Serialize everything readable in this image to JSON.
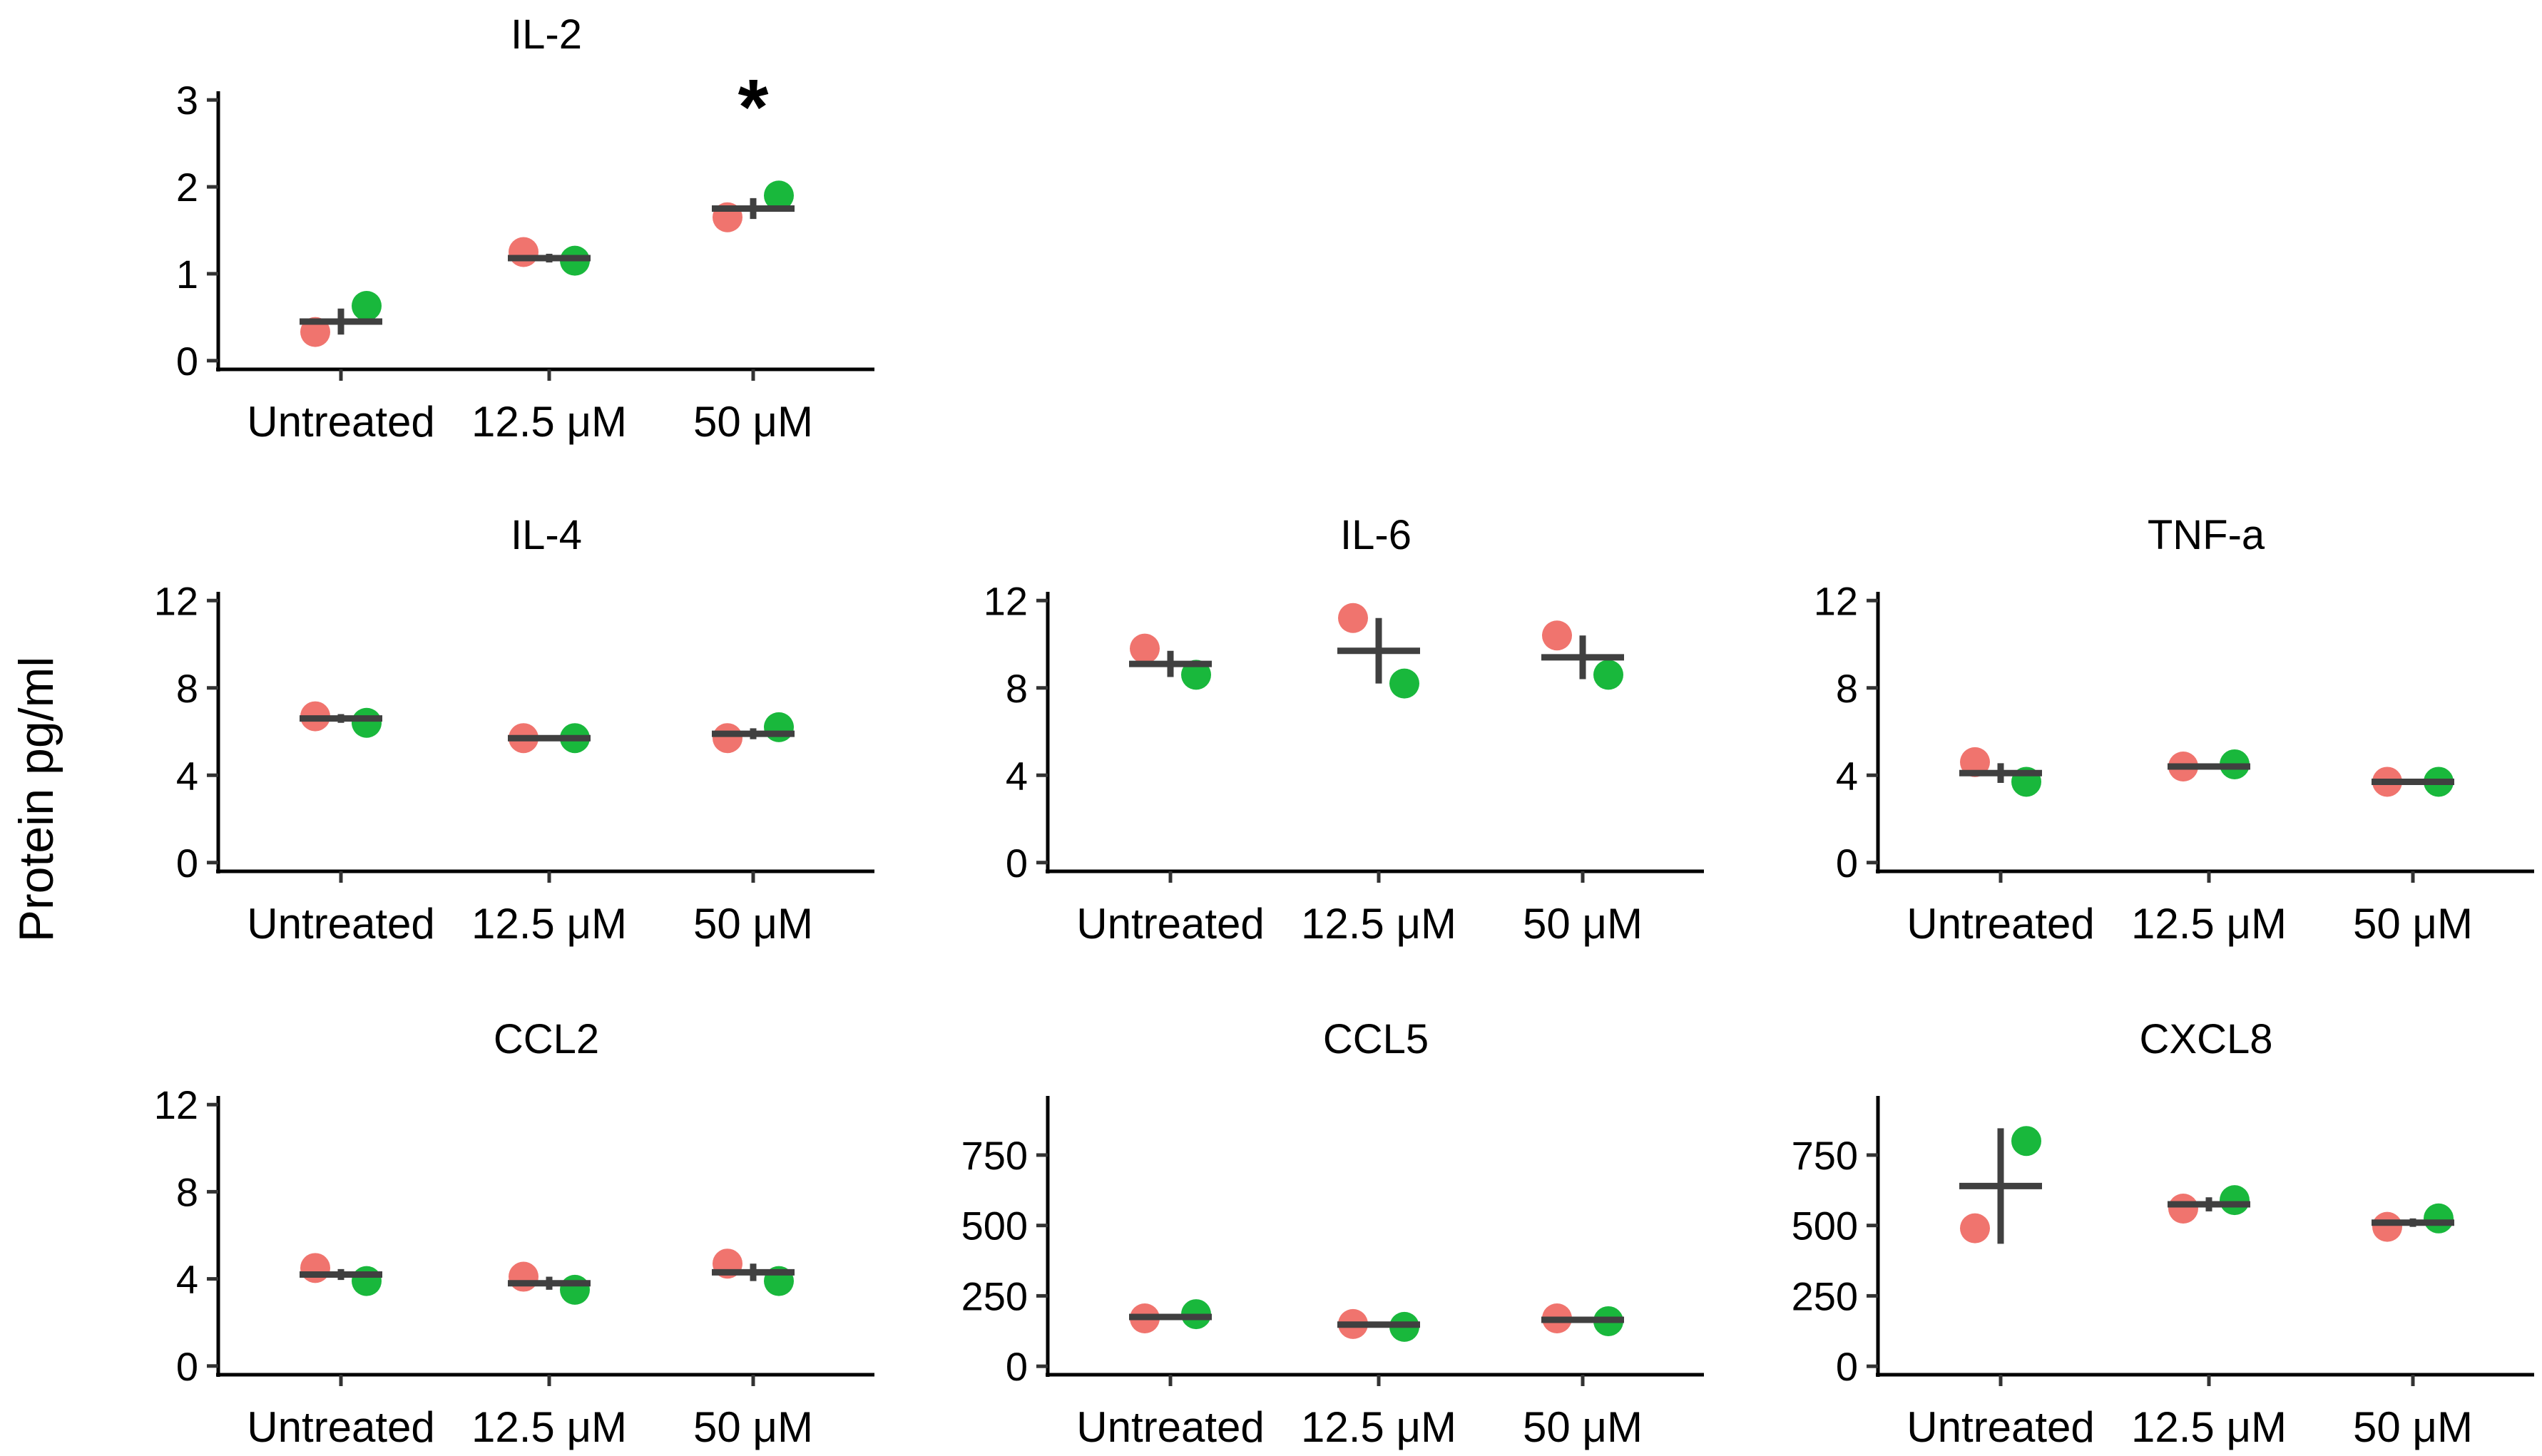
{
  "colors": {
    "rep1": "#F0746E",
    "rep2": "#19B83C",
    "summary": "#404040",
    "axis": "#000000"
  },
  "chart_data": {
    "type": "scatter",
    "ylabel": "Protein pg/ml",
    "categories": [
      "Untreated",
      "12.5 μM",
      "50 μM"
    ],
    "panels": [
      {
        "title": "IL-2",
        "ylim": [
          -0.1,
          3.1
        ],
        "yticks": [
          "0",
          "1",
          "2",
          "3"
        ],
        "ytick_values": [
          0,
          1,
          2,
          3
        ],
        "rep1": [
          0.33,
          1.25,
          1.65
        ],
        "rep2": [
          0.63,
          1.15,
          1.9
        ],
        "mean": [
          0.45,
          1.18,
          1.75
        ],
        "err": [
          0.15,
          0.05,
          0.12
        ],
        "annotations": [
          {
            "category": "50 μM",
            "text": "*"
          }
        ]
      },
      {
        "title": "IL-4",
        "ylim": [
          -0.4,
          12.4
        ],
        "yticks": [
          "0",
          "4",
          "8",
          "12"
        ],
        "ytick_values": [
          0,
          4,
          8,
          12
        ],
        "rep1": [
          6.7,
          5.7,
          5.7
        ],
        "rep2": [
          6.4,
          5.7,
          6.2
        ],
        "mean": [
          6.6,
          5.7,
          5.9
        ],
        "err": [
          0.2,
          0.1,
          0.25
        ]
      },
      {
        "title": "IL-6",
        "ylim": [
          -0.4,
          12.4
        ],
        "yticks": [
          "0",
          "4",
          "8",
          "12"
        ],
        "ytick_values": [
          0,
          4,
          8,
          12
        ],
        "rep1": [
          9.8,
          11.2,
          10.4
        ],
        "rep2": [
          8.6,
          8.2,
          8.6
        ],
        "mean": [
          9.1,
          9.7,
          9.4
        ],
        "err": [
          0.6,
          1.5,
          1.0
        ]
      },
      {
        "title": "TNF-a",
        "ylim": [
          -0.4,
          12.4
        ],
        "yticks": [
          "0",
          "4",
          "8",
          "12"
        ],
        "ytick_values": [
          0,
          4,
          8,
          12
        ],
        "rep1": [
          4.6,
          4.4,
          3.7
        ],
        "rep2": [
          3.7,
          4.5,
          3.7
        ],
        "mean": [
          4.1,
          4.4,
          3.7
        ],
        "err": [
          0.45,
          0.1,
          0.05
        ]
      },
      {
        "title": "CCL2",
        "ylim": [
          -0.4,
          12.4
        ],
        "yticks": [
          "0",
          "4",
          "8",
          "12"
        ],
        "ytick_values": [
          0,
          4,
          8,
          12
        ],
        "rep1": [
          4.5,
          4.1,
          4.7
        ],
        "rep2": [
          3.9,
          3.5,
          3.9
        ],
        "mean": [
          4.2,
          3.8,
          4.3
        ],
        "err": [
          0.25,
          0.3,
          0.4
        ]
      },
      {
        "title": "CCL5",
        "ylim": [
          -30,
          960
        ],
        "yticks": [
          "0",
          "250",
          "500",
          "750"
        ],
        "ytick_values": [
          0,
          250,
          500,
          750
        ],
        "rep1": [
          170,
          150,
          170
        ],
        "rep2": [
          185,
          140,
          160
        ],
        "mean": [
          175,
          148,
          165
        ],
        "err": [
          8,
          10,
          8
        ]
      },
      {
        "title": "CXCL8",
        "ylim": [
          -30,
          960
        ],
        "yticks": [
          "0",
          "250",
          "500",
          "750"
        ],
        "ytick_values": [
          0,
          250,
          500,
          750
        ],
        "rep1": [
          490,
          560,
          495
        ],
        "rep2": [
          800,
          590,
          525
        ],
        "mean": [
          640,
          575,
          510
        ],
        "err": [
          205,
          25,
          15
        ]
      }
    ]
  }
}
